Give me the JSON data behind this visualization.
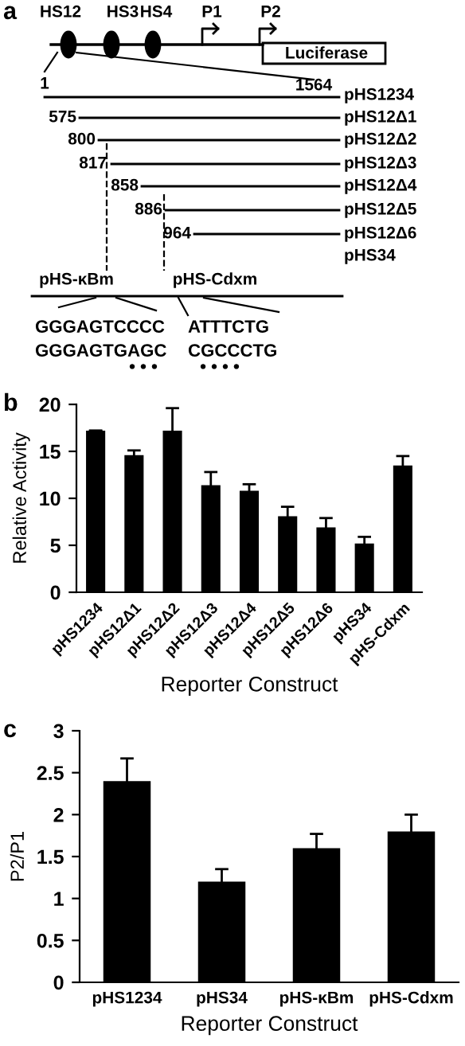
{
  "chart_data": [
    {
      "type": "other",
      "title": "a",
      "annotations": [
        "HS12",
        "HS3",
        "HS4",
        "P1",
        "P2",
        "Luciferase",
        "1",
        "1564",
        "pHS1234",
        "575",
        "pHS12Δ1",
        "800",
        "pHS12Δ2",
        "817",
        "pHS12Δ3",
        "858",
        "pHS12Δ4",
        "886",
        "pHS12Δ5",
        "964",
        "pHS12Δ6",
        "pHS34",
        "pHS-κBm",
        "pHS-Cdxm",
        "GGGAGTCCCC",
        "ATTTCTG",
        "GGGAGTGAGC",
        "CGCCCTG",
        "• • •",
        "• • • •"
      ]
    },
    {
      "type": "bar",
      "title": "b",
      "xlabel": "Reporter Construct",
      "ylabel": "Relative Activity",
      "categories": [
        "pHS1234",
        "pHS12Δ1",
        "pHS12Δ2",
        "pHS12Δ3",
        "pHS12Δ4",
        "pHS12Δ5",
        "pHS12Δ6",
        "pHS34",
        "pHS-Cdxm"
      ],
      "values": [
        17.2,
        14.6,
        17.2,
        11.4,
        10.8,
        8.1,
        6.9,
        5.2,
        13.5
      ],
      "errors": [
        null,
        0.5,
        2.4,
        1.4,
        0.7,
        1.0,
        1.0,
        0.7,
        1.0
      ],
      "color": "#000000",
      "ylim": [
        0,
        20
      ],
      "yticks": [
        0,
        5,
        10,
        15,
        20
      ]
    },
    {
      "type": "bar",
      "title": "c",
      "xlabel": "Reporter Construct",
      "ylabel": "P2/P1",
      "categories": [
        "pHS1234",
        "pHS34",
        "pHS-κBm",
        "pHS-Cdxm"
      ],
      "values": [
        2.4,
        1.2,
        1.6,
        1.8
      ],
      "errors": [
        0.27,
        0.15,
        0.17,
        0.2
      ],
      "color": "#000000",
      "ylim": [
        0,
        3
      ],
      "yticks": [
        0,
        0.5,
        1,
        1.5,
        2,
        2.5,
        3
      ]
    }
  ]
}
